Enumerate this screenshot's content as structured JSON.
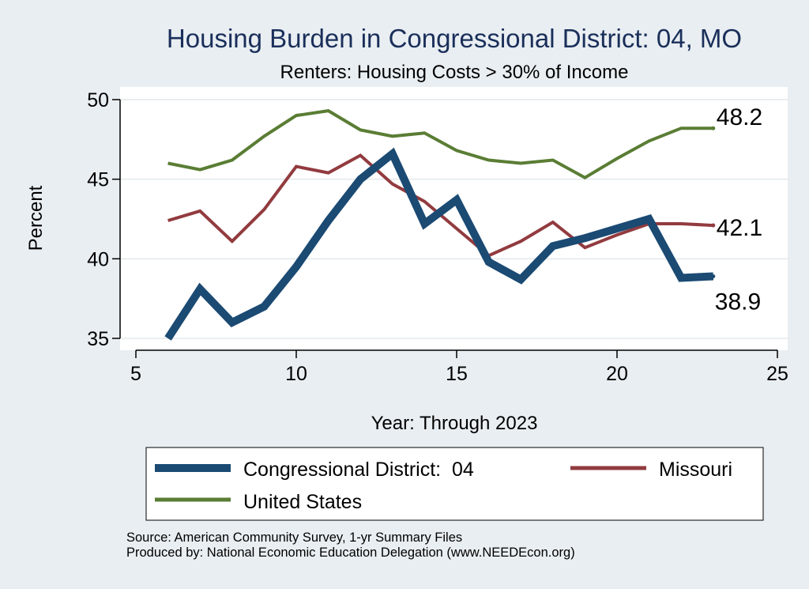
{
  "chart_data": {
    "type": "line",
    "title": "Housing Burden in Congressional District:  04, MO",
    "subtitle": "Renters: Housing Costs > 30% of Income",
    "xlabel": "Year: Through 2023",
    "ylabel": "Percent",
    "xlim": [
      5,
      25
    ],
    "ylim": [
      35,
      50
    ],
    "xticks": [
      5,
      10,
      15,
      20,
      25
    ],
    "yticks": [
      35,
      40,
      45,
      50
    ],
    "x": [
      6,
      7,
      8,
      9,
      10,
      11,
      12,
      13,
      14,
      15,
      16,
      17,
      18,
      19,
      20,
      21,
      22,
      23
    ],
    "series": [
      {
        "name": "Congressional District:  04",
        "color": "#1b4a73",
        "values": [
          35.0,
          38.1,
          36.0,
          37.0,
          39.5,
          42.4,
          45.0,
          46.6,
          42.2,
          43.7,
          39.8,
          38.7,
          40.8,
          41.3,
          41.9,
          42.5,
          38.8,
          38.9
        ],
        "end_label": "38.9"
      },
      {
        "name": "Missouri",
        "color": "#923b3f",
        "values": [
          42.4,
          43.0,
          41.1,
          43.1,
          45.8,
          45.4,
          46.5,
          44.7,
          43.6,
          41.9,
          40.2,
          41.1,
          42.3,
          40.7,
          41.5,
          42.2,
          42.2,
          42.1
        ],
        "end_label": "42.1"
      },
      {
        "name": "United States",
        "color": "#5a7d34",
        "values": [
          46.0,
          45.6,
          46.2,
          47.7,
          49.0,
          49.3,
          48.1,
          47.7,
          47.9,
          46.8,
          46.2,
          46.0,
          46.2,
          45.1,
          46.3,
          47.4,
          48.2,
          48.2
        ],
        "end_label": "48.2"
      }
    ],
    "grid": true,
    "legend_position": "bottom"
  },
  "source": {
    "line1": "Source: American Community Survey, 1-yr Summary Files",
    "line2": "Produced by: National Economic Education Delegation (www.NEEDEcon.org)"
  }
}
